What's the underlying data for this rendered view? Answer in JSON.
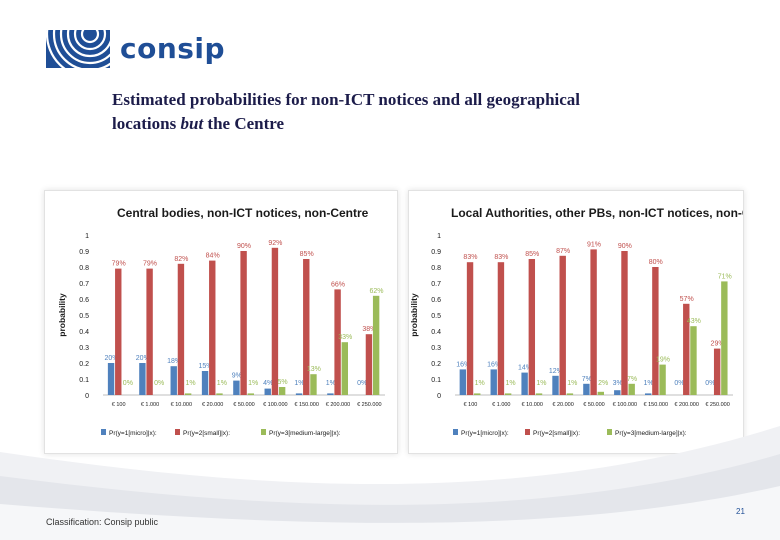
{
  "brand": {
    "name": "consip"
  },
  "slide": {
    "title_line1": "Estimated probabilities for non-ICT notices and all geographical",
    "title_line2_pre": "locations ",
    "title_line2_em": "but",
    "title_line2_post": " the Centre",
    "footer": "Classification: Consip public",
    "page_number": "21"
  },
  "colors": {
    "micro": "#4f81bd",
    "small": "#c0504d",
    "medium_large": "#9bbb59",
    "brand": "#1f4e96"
  },
  "chart_data": [
    {
      "type": "bar",
      "title": "Central bodies, non-ICT notices, non-Centre",
      "ylabel": "probability",
      "ylim": [
        0,
        1
      ],
      "yticks": [
        "0",
        "0.1",
        "0.2",
        "0.3",
        "0.4",
        "0.5",
        "0.6",
        "0.7",
        "0.8",
        "0.9",
        "1"
      ],
      "categories": [
        "€ 100",
        "€ 1.000",
        "€ 10.000",
        "€ 20.000",
        "€ 50.000",
        "€ 100.000",
        "€ 150.000",
        "€ 200.000",
        "€ 250.000"
      ],
      "series": [
        {
          "name": "Pr(y=1[micro]|x):",
          "color": "#4f81bd",
          "values": [
            0.2,
            0.2,
            0.18,
            0.15,
            0.09,
            0.04,
            0.01,
            0.01,
            0.0
          ],
          "labels": [
            "20%",
            "20%",
            "18%",
            "15%",
            "9%",
            "4%",
            "1%",
            "1%",
            "0%"
          ]
        },
        {
          "name": "Pr(y=2[small]|x):",
          "color": "#c0504d",
          "values": [
            0.79,
            0.79,
            0.82,
            0.84,
            0.9,
            0.92,
            0.85,
            0.66,
            0.38
          ],
          "labels": [
            "79%",
            "79%",
            "82%",
            "84%",
            "90%",
            "92%",
            "85%",
            "66%",
            "38%"
          ]
        },
        {
          "name": "Pr(y=3[medium-large]|x):",
          "color": "#9bbb59",
          "values": [
            0.0,
            0.0,
            0.01,
            0.01,
            0.01,
            0.05,
            0.13,
            0.33,
            0.62
          ],
          "labels": [
            "0%",
            "0%",
            "1%",
            "1%",
            "1%",
            "5%",
            "13%",
            "33%",
            "62%"
          ]
        }
      ]
    },
    {
      "type": "bar",
      "title": "Local Authorities, other PBs, non-ICT notices, non-Centre",
      "ylabel": "probability",
      "ylim": [
        0,
        1
      ],
      "yticks": [
        "0",
        "0.1",
        "0.2",
        "0.3",
        "0.4",
        "0.5",
        "0.6",
        "0.7",
        "0.8",
        "0.9",
        "1"
      ],
      "categories": [
        "€ 100",
        "€ 1.000",
        "€ 10.000",
        "€ 20.000",
        "€ 50.000",
        "€ 100.000",
        "€ 150.000",
        "€ 200.000",
        "€ 250.000"
      ],
      "series": [
        {
          "name": "Pr(y=1[micro]|x):",
          "color": "#4f81bd",
          "values": [
            0.16,
            0.16,
            0.14,
            0.12,
            0.07,
            0.03,
            0.01,
            0.0,
            0.0
          ],
          "labels": [
            "16%",
            "16%",
            "14%",
            "12%",
            "7%",
            "3%",
            "1%",
            "0%",
            "0%"
          ]
        },
        {
          "name": "Pr(y=2[small]|x):",
          "color": "#c0504d",
          "values": [
            0.83,
            0.83,
            0.85,
            0.87,
            0.91,
            0.9,
            0.8,
            0.57,
            0.29
          ],
          "labels": [
            "83%",
            "83%",
            "85%",
            "87%",
            "91%",
            "90%",
            "80%",
            "57%",
            "29%"
          ]
        },
        {
          "name": "Pr(y=3[medium-large]|x):",
          "color": "#9bbb59",
          "values": [
            0.01,
            0.01,
            0.01,
            0.01,
            0.02,
            0.07,
            0.19,
            0.43,
            0.71
          ],
          "labels": [
            "1%",
            "1%",
            "1%",
            "1%",
            "2%",
            "7%",
            "19%",
            "43%",
            "71%"
          ]
        }
      ]
    }
  ]
}
